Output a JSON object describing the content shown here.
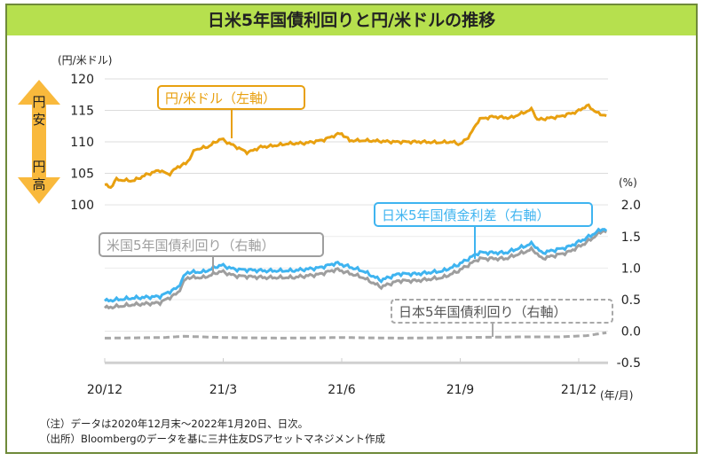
{
  "chart_data": {
    "type": "line",
    "title": "日米5年国債利回りと円/米ドルの推移",
    "left_axis": {
      "unit_label": "(円/米ドル)",
      "ylim": [
        100,
        120
      ],
      "ticks": [
        100,
        105,
        110,
        115,
        120
      ]
    },
    "right_axis": {
      "unit_label": "(%)",
      "ylim": [
        -0.5,
        2.0
      ],
      "ticks": [
        -0.5,
        0.0,
        0.5,
        1.0,
        1.5,
        2.0
      ],
      "tick_labels": [
        "-0.5",
        "0.0",
        "0.5",
        "1.0",
        "1.5",
        "2.0"
      ]
    },
    "x_axis": {
      "unit_label": "(年/月)",
      "ticks": [
        "20/12",
        "21/3",
        "21/6",
        "21/9",
        "21/12"
      ],
      "tick_months": [
        0,
        3,
        6,
        9,
        12
      ],
      "xlim_months": [
        0,
        12.7
      ]
    },
    "arrow_labels": {
      "up": "円安",
      "down": "円高"
    },
    "series": [
      {
        "name": "円/米ドル（左軸）",
        "axis": "left",
        "color": "#e8a010",
        "x": [
          0,
          0.16,
          0.27,
          0.72,
          1.06,
          1.39,
          1.62,
          1.84,
          2.07,
          2.29,
          2.61,
          2.94,
          3.17,
          3.62,
          3.96,
          4.18,
          4.63,
          5.08,
          5.53,
          5.98,
          6.2,
          6.65,
          7.33,
          8.0,
          8.45,
          8.79,
          9.01,
          9.24,
          9.48,
          9.82,
          10.27,
          10.83,
          10.94,
          11.51,
          11.96,
          12.22,
          12.49,
          12.74
        ],
        "y": [
          103.2,
          102.7,
          104.0,
          103.8,
          104.8,
          105.5,
          104.8,
          106.0,
          106.6,
          108.8,
          109.2,
          110.5,
          109.7,
          108.3,
          109.2,
          109.3,
          109.7,
          109.8,
          110.3,
          111.4,
          110.2,
          110.2,
          110.0,
          110.0,
          109.9,
          110.0,
          109.6,
          111.0,
          113.6,
          114.0,
          113.8,
          115.2,
          113.5,
          114.0,
          114.8,
          115.8,
          114.5,
          114.1
        ]
      },
      {
        "name": "米国5年国債利回り（右軸）",
        "axis": "right",
        "color": "#9e9e9e",
        "x": [
          0,
          0.72,
          1.39,
          1.84,
          2.07,
          2.52,
          2.94,
          3.28,
          4.07,
          4.75,
          5.42,
          5.87,
          6.54,
          6.99,
          7.44,
          7.89,
          8.56,
          8.94,
          9.48,
          10.15,
          10.83,
          11.06,
          11.73,
          12.18,
          12.62,
          12.74
        ],
        "y": [
          0.37,
          0.42,
          0.45,
          0.6,
          0.85,
          0.85,
          0.95,
          0.88,
          0.85,
          0.85,
          0.9,
          0.98,
          0.85,
          0.7,
          0.8,
          0.8,
          0.85,
          0.95,
          1.15,
          1.15,
          1.3,
          1.15,
          1.25,
          1.4,
          1.6,
          1.55
        ]
      },
      {
        "name": "日本5年国債利回り（右軸）",
        "axis": "right",
        "color": "#a8a8a8",
        "dashed": true,
        "x": [
          0,
          1.5,
          2.0,
          3.0,
          4.5,
          6.0,
          7.5,
          9.0,
          10.5,
          11.5,
          12.2,
          12.74
        ],
        "y": [
          -0.11,
          -0.1,
          -0.08,
          -0.1,
          -0.11,
          -0.1,
          -0.11,
          -0.1,
          -0.09,
          -0.09,
          -0.07,
          -0.02
        ]
      }
    ],
    "spread_series": {
      "name": "日米5年国債金利差（右軸）",
      "axis": "right",
      "color": "#3fb4f0",
      "definition": "米国 − 日本"
    }
  },
  "notes": [
    "（注）データは2020年12月末～2022年1月20日、日次。",
    "（出所）Bloombergのデータを基に三井住友DSアセットマネジメント作成"
  ]
}
